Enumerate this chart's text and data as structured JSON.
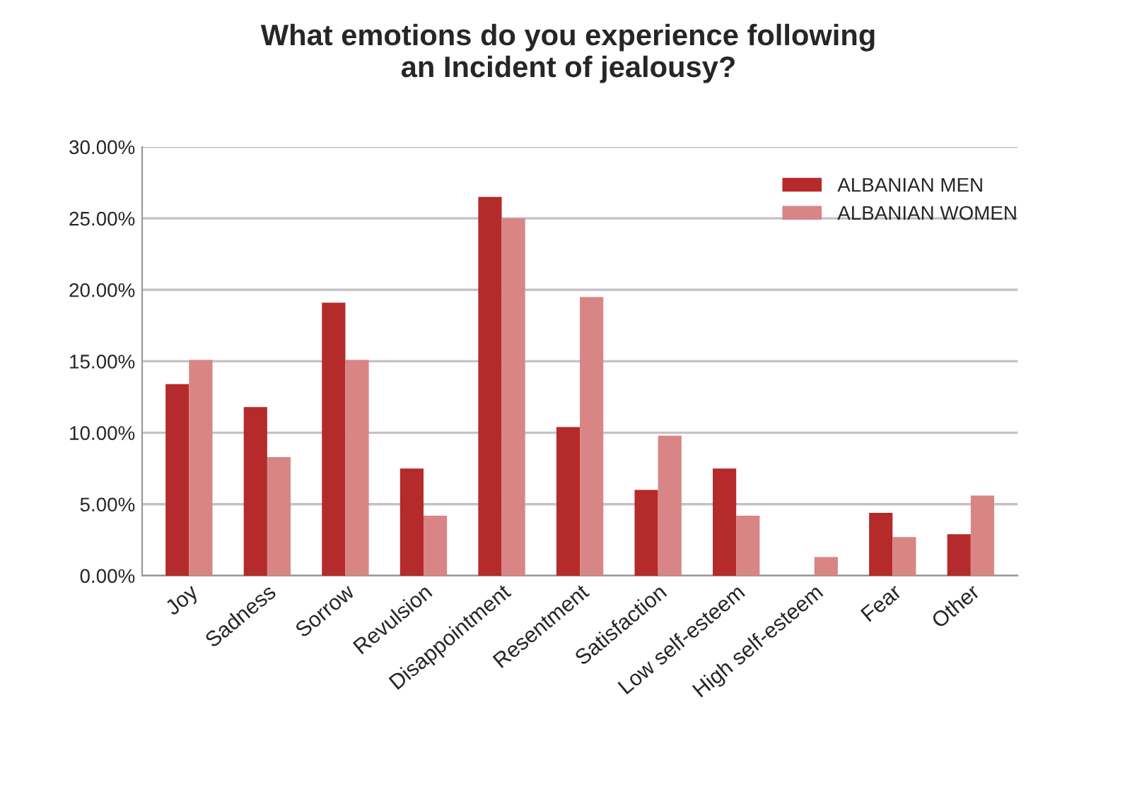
{
  "chart_data": {
    "type": "bar",
    "title": "What emotions do you experience following\nan Incident of jealousy?",
    "categories": [
      "Joy",
      "Sadness",
      "Sorrow",
      "Revulsion",
      "Disappointment",
      "Resentment",
      "Satisfaction",
      "Low self-esteem",
      "High self-esteem",
      "Fear",
      "Other"
    ],
    "series": [
      {
        "name": "ALBANIAN MEN",
        "color": "#b52a2a",
        "values": [
          13.4,
          11.8,
          19.1,
          7.5,
          26.5,
          10.4,
          6.0,
          7.5,
          null,
          4.4,
          2.9
        ]
      },
      {
        "name": "ALBANIAN WOMEN",
        "color": "#d98585",
        "values": [
          15.1,
          8.3,
          15.1,
          4.2,
          25.0,
          19.5,
          9.8,
          4.2,
          1.3,
          2.7,
          5.6
        ]
      }
    ],
    "ylim": [
      0,
      30
    ],
    "yticks": [
      {
        "value": 0,
        "label": "0.00%"
      },
      {
        "value": 5,
        "label": "5.00%"
      },
      {
        "value": 10,
        "label": "10.00%"
      },
      {
        "value": 15,
        "label": "15.00%"
      },
      {
        "value": 20,
        "label": "20.00%"
      },
      {
        "value": 25,
        "label": "25.00%"
      },
      {
        "value": 30,
        "label": "30.00%"
      }
    ],
    "grid": "y",
    "legend": "top right"
  }
}
